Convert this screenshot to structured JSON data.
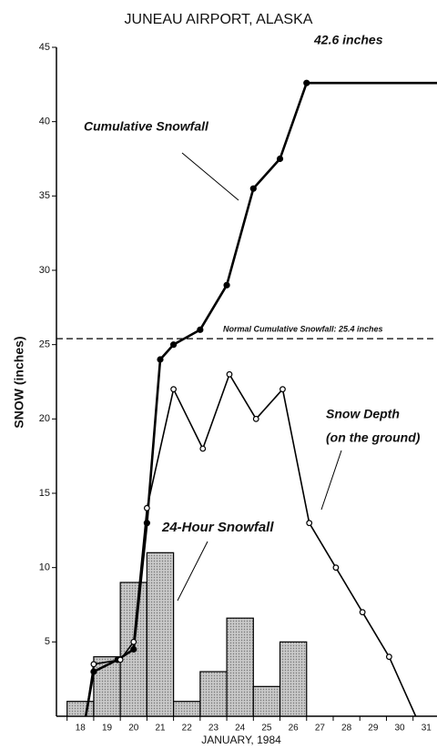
{
  "chart_data": {
    "type": "line",
    "title": "JUNEAU AIRPORT, ALASKA",
    "y_label": "SNOW (inches)",
    "x_label": "JANUARY, 1984",
    "xlim": [
      17.1,
      31.4
    ],
    "ylim": [
      0,
      45
    ],
    "xticks": [
      18,
      19,
      20,
      21,
      22,
      23,
      24,
      25,
      26,
      27,
      28,
      29,
      30,
      31
    ],
    "yticks": [
      5,
      10,
      15,
      20,
      25,
      30,
      35,
      40,
      45
    ],
    "bars": {
      "color": "#bdbdbd",
      "x": [
        18,
        19,
        20,
        21,
        22,
        23,
        24,
        25,
        26
      ],
      "values": [
        1,
        4,
        9,
        11,
        1,
        3,
        6.6,
        2,
        5
      ]
    },
    "series": [
      {
        "color": "#000000",
        "x": [
          18.2,
          18.5,
          19.4,
          20,
          20.5,
          21,
          21.5,
          22.5,
          23.5,
          24.5,
          25.5,
          26.5,
          31.4
        ],
        "values": [
          0,
          3,
          3.8,
          4.5,
          13,
          24,
          25,
          26,
          29,
          35.5,
          37.5,
          42.6,
          42.6
        ]
      },
      {
        "color": "#000000",
        "x": [
          18.2,
          18.5,
          19.5,
          20,
          20.5,
          21.5,
          22.6,
          23.6,
          24.6,
          25.6,
          26.6,
          27.6,
          28.6,
          29.6,
          30.6
        ],
        "values": [
          0,
          3.5,
          3.8,
          5,
          14,
          22,
          18,
          23,
          20,
          22,
          13,
          10,
          7,
          4,
          0
        ]
      }
    ],
    "hline": {
      "value": 25.4,
      "label": "Normal Cumulative Snowfall: 25.4 inches"
    },
    "annotations": [
      "42.6 inches",
      "Cumulative Snowfall",
      "24-Hour Snowfall",
      "Snow Depth",
      "(on the ground)"
    ]
  }
}
